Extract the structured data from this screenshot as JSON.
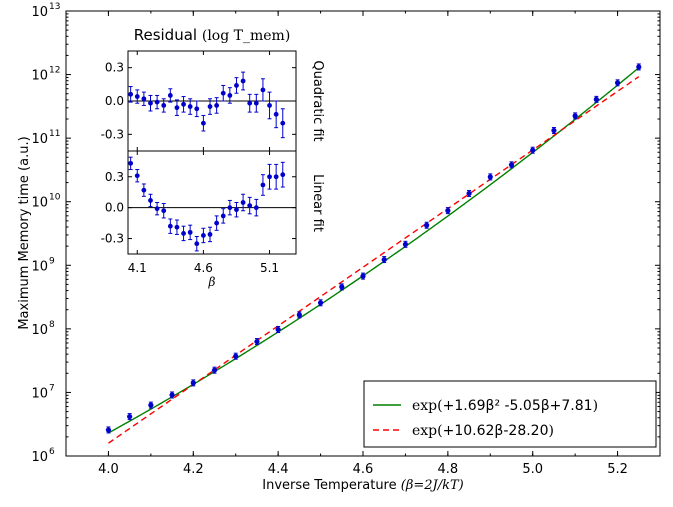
{
  "chart_data": [
    {
      "id": "main",
      "type": "scatter",
      "title": "",
      "xlabel": "Inverse Temperature",
      "xlabel_math": "(β=2J/kT)",
      "ylabel": "Maximum Memory time (a.u.)",
      "xlim": [
        3.9,
        5.3
      ],
      "ylim_log10": [
        6,
        13
      ],
      "y_scale": "log",
      "x_ticks": [
        "4.0",
        "4.2",
        "4.4",
        "4.6",
        "4.8",
        "5.0",
        "5.2"
      ],
      "y_ticks": [
        {
          "base": "10",
          "exp": "6"
        },
        {
          "base": "10",
          "exp": "7"
        },
        {
          "base": "10",
          "exp": "8"
        },
        {
          "base": "10",
          "exp": "9"
        },
        {
          "base": "10",
          "exp": "10"
        },
        {
          "base": "10",
          "exp": "11"
        },
        {
          "base": "10",
          "exp": "12"
        },
        {
          "base": "10",
          "exp": "13"
        }
      ],
      "x": [
        4.0,
        4.05,
        4.1,
        4.15,
        4.2,
        4.25,
        4.3,
        4.35,
        4.4,
        4.45,
        4.5,
        4.55,
        4.6,
        4.65,
        4.7,
        4.75,
        4.8,
        4.85,
        4.9,
        4.95,
        5.0,
        5.05,
        5.1,
        5.15,
        5.2,
        5.25
      ],
      "log10_y": [
        6.41,
        6.62,
        6.8,
        6.96,
        7.15,
        7.35,
        7.57,
        7.8,
        7.99,
        8.22,
        8.41,
        8.66,
        8.83,
        9.09,
        9.33,
        9.63,
        9.86,
        10.13,
        10.39,
        10.58,
        10.81,
        11.12,
        11.35,
        11.61,
        11.87,
        12.12
      ],
      "series": [
        {
          "name": "Quadratic",
          "legend_label": "exp(+1.69β² -5.05β+7.81)",
          "color": "#008000",
          "style": "solid",
          "coefficients": [
            1.69,
            -5.05,
            7.81
          ]
        },
        {
          "name": "Linear",
          "legend_label": "exp(+10.62β-28.20)",
          "color": "#ff0000",
          "style": "dashed",
          "coefficients": [
            10.62,
            -28.2
          ]
        }
      ],
      "legend": {
        "placement": "lower-right",
        "entries": [
          {
            "prefix": "exp(",
            "math": "+1.69β² -5.05β+7.81",
            "suffix": ")"
          },
          {
            "prefix": "exp(",
            "math": "+10.62β-28.20",
            "suffix": ")"
          }
        ]
      },
      "marker_color": "#0000cc"
    },
    {
      "id": "inset",
      "type": "scatter",
      "title": "Residual",
      "title_math": "(log T_mem)",
      "xlabel": "β",
      "x_ticks": [
        "4.1",
        "4.6",
        "5.1"
      ],
      "xlim": [
        4.03,
        5.3
      ],
      "panels": [
        {
          "name": "Quadratic fit",
          "ylim": [
            -0.45,
            0.45
          ],
          "y_ticks": [
            "0.3",
            "0.0",
            "-0.3"
          ],
          "x": [
            4.05,
            4.1,
            4.15,
            4.2,
            4.25,
            4.3,
            4.35,
            4.4,
            4.45,
            4.5,
            4.55,
            4.6,
            4.65,
            4.7,
            4.75,
            4.8,
            4.85,
            4.9,
            4.95,
            5.0,
            5.05,
            5.1,
            5.15,
            5.2
          ],
          "y": [
            0.06,
            0.04,
            0.02,
            -0.02,
            -0.01,
            -0.04,
            0.05,
            -0.06,
            -0.03,
            -0.05,
            -0.07,
            -0.2,
            -0.05,
            -0.04,
            0.07,
            0.05,
            0.14,
            0.18,
            -0.02,
            -0.02,
            0.1,
            -0.04,
            -0.12,
            -0.2
          ],
          "err": [
            0.07,
            0.06,
            0.06,
            0.07,
            0.06,
            0.06,
            0.06,
            0.07,
            0.07,
            0.07,
            0.07,
            0.07,
            0.07,
            0.07,
            0.07,
            0.07,
            0.07,
            0.08,
            0.08,
            0.08,
            0.1,
            0.12,
            0.12,
            0.13
          ]
        },
        {
          "name": "Linear fit",
          "ylim": [
            -0.45,
            0.55
          ],
          "y_ticks": [
            "0.3",
            "0.0",
            "-0.3"
          ],
          "x": [
            4.05,
            4.1,
            4.15,
            4.2,
            4.25,
            4.3,
            4.35,
            4.4,
            4.45,
            4.5,
            4.55,
            4.6,
            4.65,
            4.7,
            4.75,
            4.8,
            4.85,
            4.9,
            4.95,
            5.0,
            5.05,
            5.1,
            5.15,
            5.2
          ],
          "y": [
            0.43,
            0.31,
            0.17,
            0.07,
            -0.01,
            -0.03,
            -0.18,
            -0.19,
            -0.25,
            -0.24,
            -0.35,
            -0.27,
            -0.26,
            -0.15,
            -0.08,
            0.0,
            -0.02,
            0.05,
            0.02,
            0.0,
            0.22,
            0.3,
            0.3,
            0.32
          ],
          "err": [
            0.06,
            0.06,
            0.06,
            0.06,
            0.06,
            0.07,
            0.07,
            0.07,
            0.07,
            0.07,
            0.07,
            0.07,
            0.07,
            0.07,
            0.07,
            0.07,
            0.07,
            0.08,
            0.08,
            0.08,
            0.1,
            0.12,
            0.12,
            0.12
          ]
        }
      ]
    }
  ]
}
